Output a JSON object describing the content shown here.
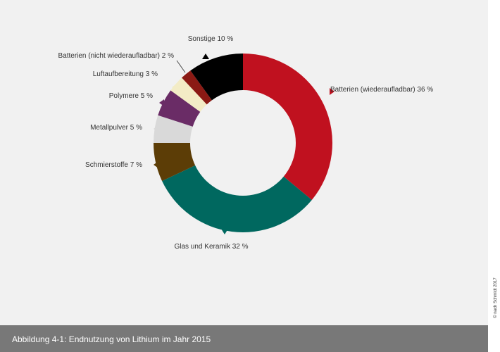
{
  "caption": "Abbildung 4-1: Endnutzung von Lithium im Jahr 2015",
  "credit": "© nach Schmidt 2017",
  "chart_data": {
    "type": "pie",
    "donut": true,
    "title": "",
    "slices": [
      {
        "label": "Batterien (wiederaufladbar) 36 %",
        "name": "Batterien (wiederaufladbar)",
        "value": 36,
        "color": "#c0111f"
      },
      {
        "label": "Glas und Keramik 32 %",
        "name": "Glas und Keramik",
        "value": 32,
        "color": "#00685f"
      },
      {
        "label": "Schmierstoffe 7 %",
        "name": "Schmierstoffe",
        "value": 7,
        "color": "#5c3d06"
      },
      {
        "label": "Metallpulver 5 %",
        "name": "Metallpulver",
        "value": 5,
        "color": "#d9d9d9"
      },
      {
        "label": "Polymere 5 %",
        "name": "Polymere",
        "value": 5,
        "color": "#6a2c66"
      },
      {
        "label": "Luftaufbereitung 3 %",
        "name": "Luftaufbereitung",
        "value": 3,
        "color": "#f3ecc6"
      },
      {
        "label": "Batterien (nicht wiederaufladbar) 2 %",
        "name": "Batterien (nicht wiederaufladbar)",
        "value": 2,
        "color": "#8b1a14"
      },
      {
        "label": "Sonstige 10 %",
        "name": "Sonstige",
        "value": 10,
        "color": "#000000"
      }
    ]
  }
}
